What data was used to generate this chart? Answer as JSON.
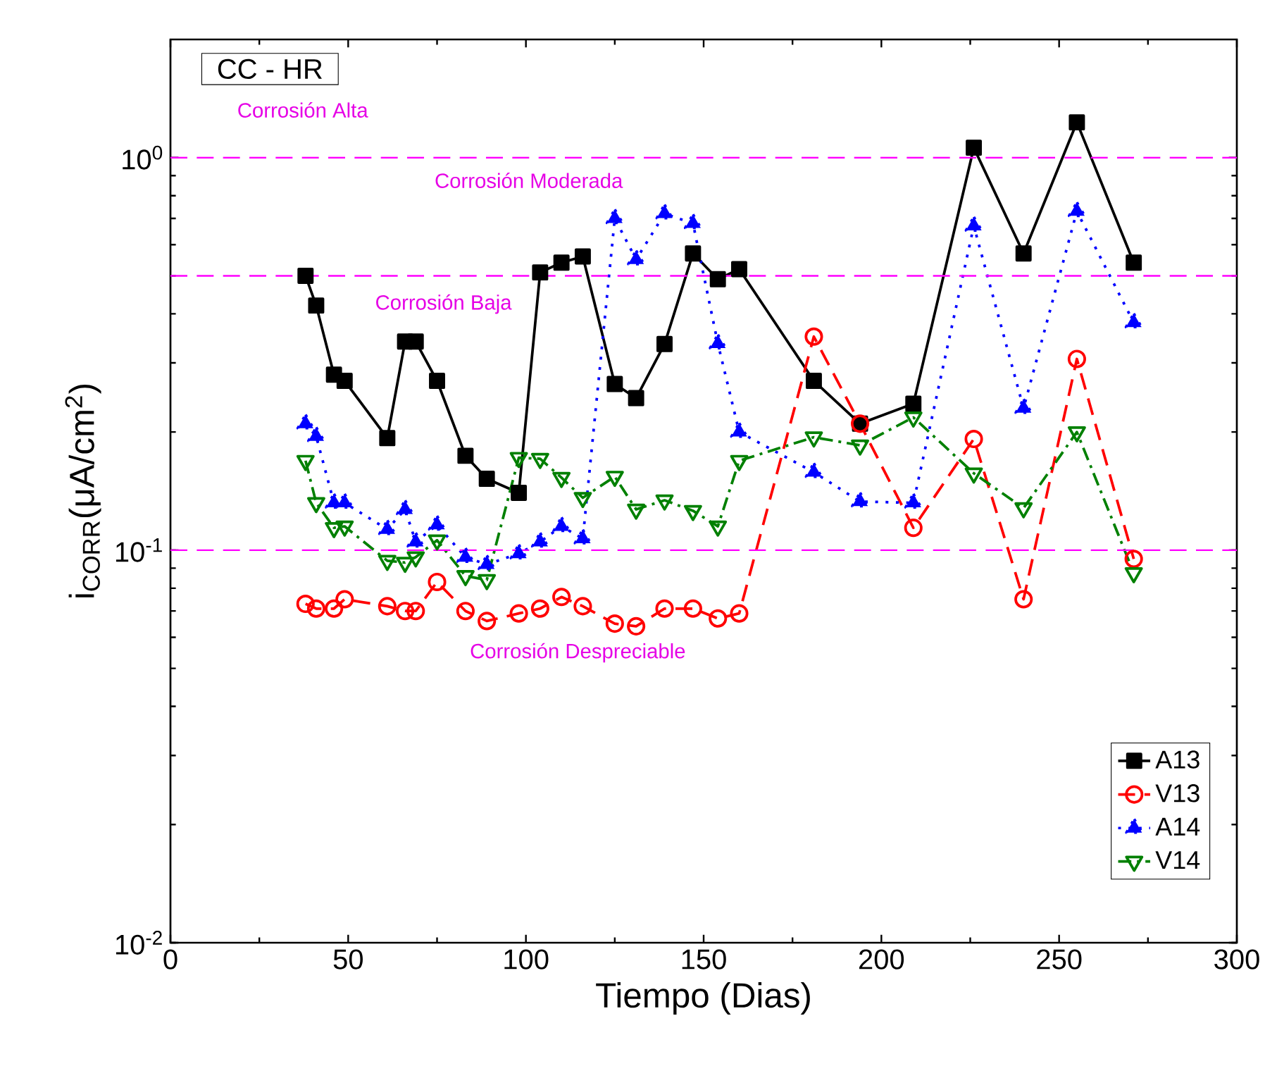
{
  "chart_data": {
    "type": "line",
    "xlabel": "Tiempo (Dias)",
    "ylabel": "i$_{CORR}$(μA/cm$^{2}$)",
    "xlim": [
      0,
      300
    ],
    "xticks": [
      0,
      50,
      100,
      150,
      200,
      250,
      300
    ],
    "ylim": [
      0.01,
      2
    ],
    "yticks": [
      {
        "value": 0.01,
        "label": "10$^{-2}$"
      },
      {
        "value": 0.1,
        "label": "10$^{-1}$"
      },
      {
        "value": 1,
        "label": "10$^{0}$"
      }
    ],
    "log": "y",
    "legend": "bottom right",
    "ref_lines": [
      {
        "axis": "y",
        "value": 1,
        "color": "#ff00ff",
        "line_style": "dashed"
      },
      {
        "axis": "y",
        "value": 0.5,
        "color": "#ff00ff",
        "line_style": "dashed"
      },
      {
        "axis": "y",
        "value": 0.1,
        "color": "#ff00ff",
        "line_style": "dashed"
      }
    ],
    "annotations": [
      "CC - HR",
      "Corrosión Alta",
      "Corrosión Moderada",
      "Corrosión Baja",
      "Corrosión Despreciable"
    ],
    "series": [
      {
        "name": "A13",
        "color": "#000000",
        "marker": "square",
        "line_style": "solid",
        "x": [
          38,
          41,
          46,
          49,
          61,
          66,
          69,
          75,
          83,
          89,
          98,
          104,
          110,
          116,
          125,
          131,
          139,
          147,
          154,
          160,
          181,
          194,
          209,
          226,
          240,
          255,
          271
        ],
        "values": [
          0.5,
          0.42,
          0.28,
          0.27,
          0.193,
          0.34,
          0.34,
          0.27,
          0.174,
          0.152,
          0.14,
          0.51,
          0.54,
          0.56,
          0.265,
          0.244,
          0.335,
          0.57,
          0.49,
          0.52,
          0.27,
          0.21,
          0.236,
          1.06,
          0.57,
          1.23,
          0.54
        ]
      },
      {
        "name": "V13",
        "color": "#ff0000",
        "marker": "circle",
        "line_style": "dashed",
        "x": [
          38,
          41,
          46,
          49,
          61,
          66,
          69,
          75,
          83,
          89,
          98,
          104,
          110,
          116,
          125,
          131,
          139,
          147,
          154,
          160,
          181,
          194,
          209,
          226,
          240,
          255,
          271
        ],
        "values": [
          0.073,
          0.071,
          0.071,
          0.075,
          0.072,
          0.07,
          0.07,
          0.083,
          0.07,
          0.066,
          0.069,
          0.071,
          0.076,
          0.072,
          0.065,
          0.064,
          0.071,
          0.071,
          0.067,
          0.069,
          0.35,
          0.21,
          0.114,
          0.192,
          0.075,
          0.307,
          0.095
        ]
      },
      {
        "name": "A14",
        "color": "#0000ff",
        "marker": "triangle",
        "line_style": "dotted",
        "x": [
          38,
          41,
          46,
          49,
          61,
          66,
          69,
          75,
          83,
          89,
          98,
          104,
          110,
          116,
          125,
          131,
          139,
          147,
          154,
          160,
          181,
          194,
          209,
          226,
          240,
          255,
          271
        ],
        "values": [
          0.21,
          0.195,
          0.132,
          0.132,
          0.113,
          0.127,
          0.105,
          0.116,
          0.096,
          0.092,
          0.098,
          0.105,
          0.115,
          0.107,
          0.7,
          0.55,
          0.72,
          0.68,
          0.336,
          0.2,
          0.158,
          0.133,
          0.132,
          0.67,
          0.23,
          0.73,
          0.38
        ]
      },
      {
        "name": "V14",
        "color": "#008000",
        "marker": "triangle-down",
        "line_style": "dashdot",
        "x": [
          38,
          41,
          46,
          49,
          61,
          66,
          69,
          75,
          83,
          89,
          98,
          104,
          110,
          116,
          125,
          131,
          139,
          147,
          154,
          160,
          181,
          194,
          209,
          226,
          240,
          255,
          271
        ],
        "values": [
          0.169,
          0.132,
          0.114,
          0.115,
          0.094,
          0.093,
          0.096,
          0.106,
          0.086,
          0.084,
          0.172,
          0.171,
          0.153,
          0.136,
          0.154,
          0.127,
          0.134,
          0.126,
          0.115,
          0.169,
          0.194,
          0.185,
          0.218,
          0.157,
          0.128,
          0.2,
          0.0875
        ]
      }
    ]
  }
}
